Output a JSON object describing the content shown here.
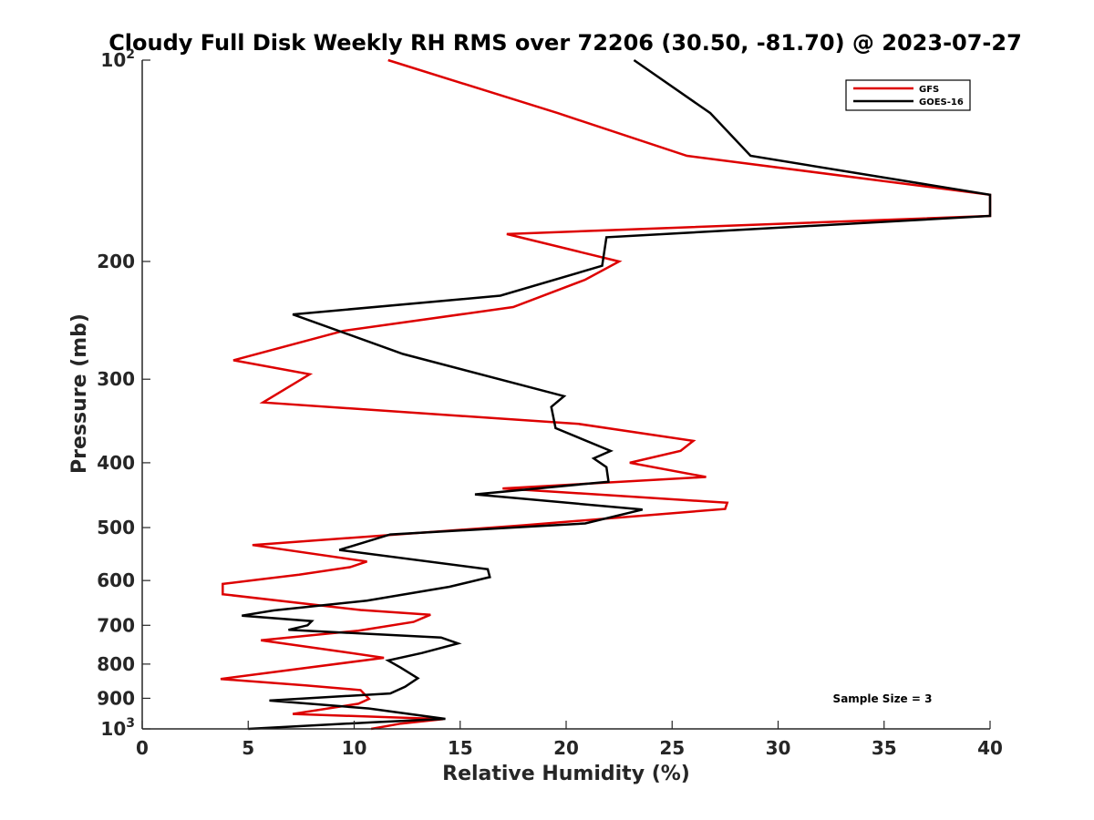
{
  "chart_data": {
    "type": "line",
    "title": "Cloudy Full Disk Weekly RH RMS over 72206 (30.50, -81.70) @ 2023-07-27",
    "xlabel": "Relative Humidity (%)",
    "ylabel": "Pressure (mb)",
    "xlim": [
      0,
      40
    ],
    "ylim": [
      100,
      1000
    ],
    "yscale": "log",
    "yreversed": true,
    "xticks": [
      0,
      5,
      10,
      15,
      20,
      25,
      30,
      35,
      40
    ],
    "xtick_labels": [
      "0",
      "5",
      "10",
      "15",
      "20",
      "25",
      "30",
      "35",
      "40"
    ],
    "yticks": [
      100,
      200,
      300,
      400,
      500,
      600,
      700,
      800,
      900,
      1000
    ],
    "ytick_labels": [
      {
        "base": "10",
        "exp": "2"
      },
      {
        "base": "200",
        "exp": ""
      },
      {
        "base": "300",
        "exp": ""
      },
      {
        "base": "400",
        "exp": ""
      },
      {
        "base": "500",
        "exp": ""
      },
      {
        "base": "600",
        "exp": ""
      },
      {
        "base": "700",
        "exp": ""
      },
      {
        "base": "800",
        "exp": ""
      },
      {
        "base": "900",
        "exp": ""
      },
      {
        "base": "10",
        "exp": "3"
      }
    ],
    "legend_position": "top-right",
    "annotation": "Sample Size = 3",
    "series": [
      {
        "name": "GFS",
        "color": "#dd0000",
        "points": [
          [
            11.6,
            100
          ],
          [
            19.6,
            120
          ],
          [
            25.7,
            139
          ],
          [
            40,
            159
          ],
          [
            40,
            171
          ],
          [
            17.2,
            182
          ],
          [
            22.5,
            200
          ],
          [
            20.9,
            213
          ],
          [
            17.5,
            234
          ],
          [
            9.5,
            254
          ],
          [
            4.3,
            281
          ],
          [
            7.9,
            295
          ],
          [
            5.7,
            325
          ],
          [
            20.6,
            350
          ],
          [
            26.0,
            371
          ],
          [
            25.4,
            384
          ],
          [
            23,
            400
          ],
          [
            26.6,
            420
          ],
          [
            17,
            437
          ],
          [
            27.6,
            459
          ],
          [
            27.5,
            469
          ],
          [
            18.0,
            496
          ],
          [
            5.2,
            531
          ],
          [
            10.6,
            562
          ],
          [
            9.8,
            573
          ],
          [
            7.4,
            588
          ],
          [
            3.8,
            607
          ],
          [
            3.8,
            629
          ],
          [
            10.3,
            664
          ],
          [
            13.6,
            675
          ],
          [
            12.8,
            692
          ],
          [
            10.2,
            713
          ],
          [
            5.6,
            737
          ],
          [
            9.6,
            768
          ],
          [
            11.4,
            783
          ],
          [
            3.7,
            842
          ],
          [
            7.7,
            861
          ],
          [
            10.3,
            875
          ],
          [
            10.7,
            902
          ],
          [
            10.2,
            917
          ],
          [
            7.1,
            950
          ],
          [
            14.2,
            967
          ],
          [
            12.2,
            982
          ],
          [
            10.8,
            1000
          ]
        ]
      },
      {
        "name": "GOES-16",
        "color": "#000000",
        "points": [
          [
            23.2,
            100
          ],
          [
            26.8,
            120
          ],
          [
            28.7,
            139
          ],
          [
            40,
            159
          ],
          [
            40,
            171
          ],
          [
            21.9,
            184
          ],
          [
            21.7,
            203
          ],
          [
            16.9,
            225
          ],
          [
            7.1,
            240
          ],
          [
            12.3,
            275
          ],
          [
            19.9,
            318
          ],
          [
            19.3,
            330
          ],
          [
            19.5,
            355
          ],
          [
            22.1,
            384
          ],
          [
            21.3,
            394
          ],
          [
            21.9,
            406
          ],
          [
            22,
            427
          ],
          [
            15.7,
            446
          ],
          [
            23.6,
            470
          ],
          [
            20.9,
            493
          ],
          [
            11.7,
            512
          ],
          [
            9.3,
            540
          ],
          [
            16.3,
            577
          ],
          [
            16.4,
            593
          ],
          [
            14.5,
            613
          ],
          [
            10.6,
            643
          ],
          [
            6.2,
            665
          ],
          [
            4.7,
            677
          ],
          [
            8.0,
            690
          ],
          [
            7.8,
            700
          ],
          [
            6.9,
            711
          ],
          [
            14.1,
            730
          ],
          [
            14.9,
            745
          ],
          [
            13.2,
            770
          ],
          [
            11.6,
            790
          ],
          [
            12.2,
            810
          ],
          [
            13.0,
            840
          ],
          [
            12.4,
            865
          ],
          [
            11.7,
            885
          ],
          [
            6.0,
            907
          ],
          [
            10.7,
            932
          ],
          [
            14.3,
            966
          ],
          [
            11.0,
            977
          ],
          [
            5.0,
            1000
          ]
        ]
      }
    ]
  }
}
